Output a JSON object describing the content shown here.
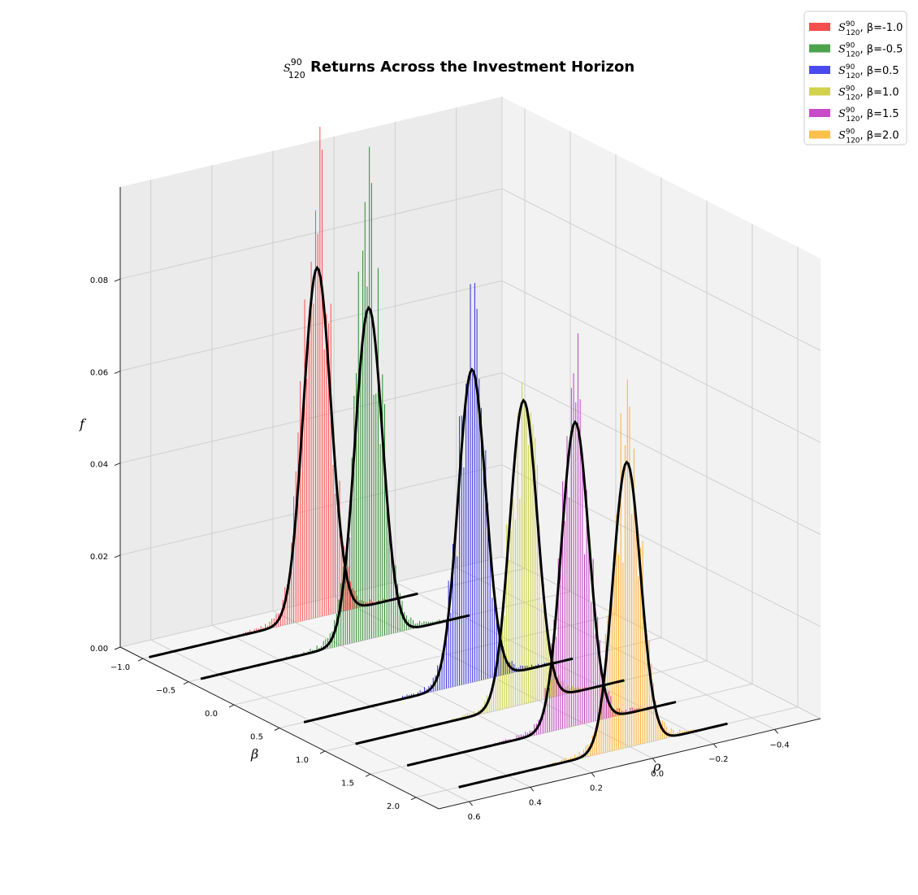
{
  "chart_data": {
    "type": "3d-histogram",
    "title_math": "S",
    "title_sup": "90",
    "title_sub": "120",
    "title_text": " Returns Across the Investment Horizon",
    "xlabel": "ρ",
    "ylabel": "β",
    "zlabel": "f",
    "xlim": [
      -0.55,
      0.7
    ],
    "ylim": [
      -1.25,
      2.25
    ],
    "zlim": [
      0,
      0.1
    ],
    "x_ticks": [
      -0.4,
      -0.2,
      0.0,
      0.2,
      0.4,
      0.6
    ],
    "x_tick_labels": [
      "−0.4",
      "−0.2",
      "0.0",
      "0.2",
      "0.4",
      "0.6"
    ],
    "y_ticks": [
      -1.0,
      -0.5,
      0.0,
      0.5,
      1.0,
      1.5,
      2.0
    ],
    "y_tick_labels": [
      "−1.0",
      "−0.5",
      "0.0",
      "0.5",
      "1.0",
      "1.5",
      "2.0"
    ],
    "z_ticks": [
      0.0,
      0.02,
      0.04,
      0.06,
      0.08
    ],
    "z_tick_labels": [
      "0.00",
      "0.02",
      "0.04",
      "0.06",
      "0.08"
    ],
    "grid": true,
    "legend_position": "top-right",
    "series": [
      {
        "name_math": "S",
        "name_sup": "90",
        "name_sub": "120",
        "name_text": ", β=-1.0",
        "beta": -1.0,
        "color": "#ff4d4d",
        "legend_color": "#f44f4f",
        "mu": 0.13,
        "sigma": 0.045,
        "peak": 0.076,
        "hist_peak": 0.094
      },
      {
        "name_math": "S",
        "name_sup": "90",
        "name_sub": "120",
        "name_text": ", β=-0.5",
        "beta": -0.5,
        "color": "#2e8b2e",
        "legend_color": "#4ca34c",
        "mu": 0.11,
        "sigma": 0.045,
        "peak": 0.072,
        "hist_peak": 0.09
      },
      {
        "name_math": "S",
        "name_sup": "90",
        "name_sub": "120",
        "name_text": ", β=0.5",
        "beta": 0.5,
        "color": "#3030e0",
        "legend_color": "#4a4aee",
        "mu": 0.07,
        "sigma": 0.045,
        "peak": 0.068,
        "hist_peak": 0.075
      },
      {
        "name_math": "S",
        "name_sup": "90",
        "name_sub": "120",
        "name_text": ", β=1.0",
        "beta": 1.0,
        "color": "#d0d040",
        "legend_color": "#d2d24c",
        "mu": 0.05,
        "sigma": 0.045,
        "peak": 0.066,
        "hist_peak": 0.072
      },
      {
        "name_math": "S",
        "name_sup": "90",
        "name_sub": "120",
        "name_text": ", β=1.5",
        "beta": 1.5,
        "color": "#c040c0",
        "legend_color": "#c84cc8",
        "mu": 0.03,
        "sigma": 0.045,
        "peak": 0.066,
        "hist_peak": 0.073
      },
      {
        "name_math": "S",
        "name_sup": "90",
        "name_sub": "120",
        "name_text": ", β=2.0",
        "beta": 2.0,
        "color": "#ffb030",
        "legend_color": "#fcc04c",
        "mu": 0.01,
        "sigma": 0.045,
        "peak": 0.062,
        "hist_peak": 0.07
      }
    ]
  }
}
